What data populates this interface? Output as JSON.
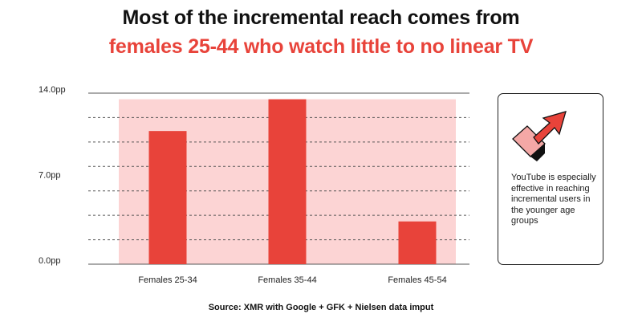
{
  "title": {
    "line1": "Most of the incremental reach comes from",
    "line2": "females 25-44 who watch little to no linear TV"
  },
  "colors": {
    "accent": "#e8433a",
    "highlight_band": "#fcd4d4"
  },
  "chart_data": {
    "type": "bar",
    "categories": [
      "Females 25-34",
      "Females 35-44",
      "Females 45-54"
    ],
    "values": [
      10.9,
      13.5,
      3.5
    ],
    "ylim": [
      0,
      14
    ],
    "ytick_values": [
      0,
      7,
      14
    ],
    "ytick_labels": [
      "0.0pp",
      "7.0pp",
      "14.0pp"
    ],
    "gridlines": [
      2,
      4,
      6,
      8,
      10,
      12
    ],
    "grid": true,
    "band_top_value": 13.5,
    "bar_color": "#e8433a",
    "legend": "none"
  },
  "callout": {
    "icon": "arrow-up-right-icon",
    "text": "YouTube is especially effective in reaching incremental users in the younger age groups"
  },
  "source": "Source: XMR with Google + GFK + Nielsen data imput"
}
